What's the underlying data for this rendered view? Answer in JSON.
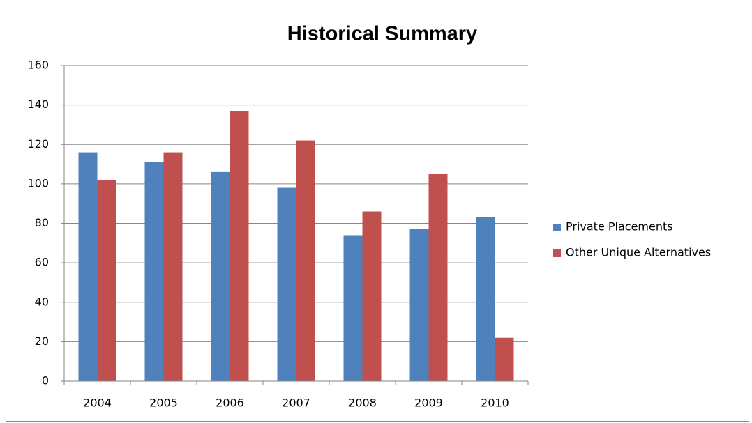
{
  "chart_data": {
    "type": "bar",
    "title": "Historical Summary",
    "categories": [
      "2004",
      "2005",
      "2006",
      "2007",
      "2008",
      "2009",
      "2010"
    ],
    "series": [
      {
        "name": "Private Placements",
        "color": "#4f81bd",
        "values": [
          116,
          111,
          106,
          98,
          74,
          77,
          83
        ]
      },
      {
        "name": "Other Unique Alternatives",
        "color": "#c0504d",
        "values": [
          102,
          116,
          137,
          122,
          86,
          105,
          22
        ]
      }
    ],
    "ylim": [
      0,
      160
    ],
    "yticks": [
      0,
      20,
      40,
      60,
      80,
      100,
      120,
      140,
      160
    ],
    "grid": true,
    "legend": "right"
  }
}
